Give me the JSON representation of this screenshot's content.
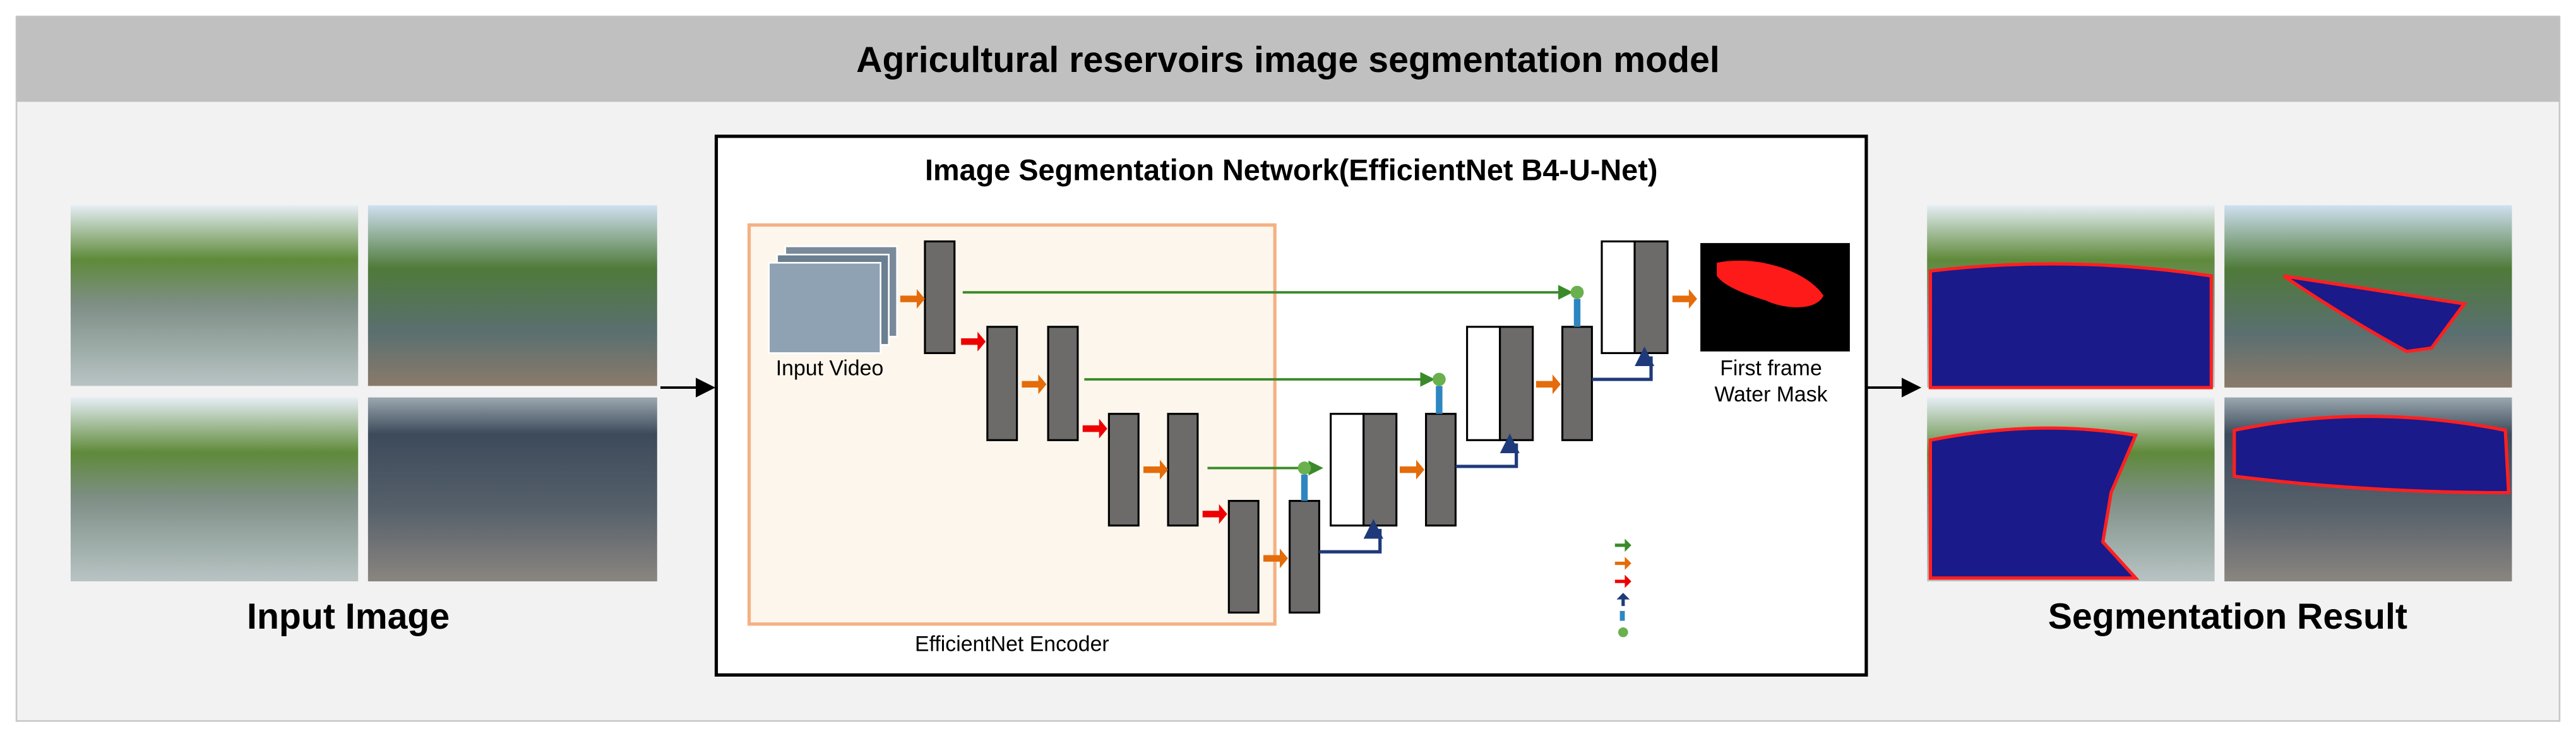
{
  "header": {
    "title": "Agricultural reservoirs image segmentation model"
  },
  "input": {
    "label": "Input Image"
  },
  "network": {
    "title": "Image Segmentation Network(EfficientNet B4-U-Net)",
    "input_video": "Input Video",
    "encoder_label": "EfficientNet Encoder",
    "output_label": [
      "First frame",
      "Water Mask"
    ]
  },
  "output": {
    "label": "Segmentation Result"
  }
}
